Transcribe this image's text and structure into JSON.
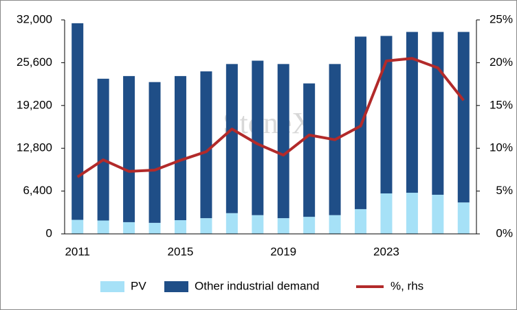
{
  "chart_data": {
    "type": "bar",
    "stacked": true,
    "watermark": "StoneX",
    "categories": [
      "2011",
      null,
      null,
      null,
      "2015",
      null,
      null,
      null,
      "2019",
      null,
      null,
      null,
      "2023",
      null,
      null,
      null
    ],
    "series": [
      {
        "name": "PV",
        "color": "#a6e1f7",
        "values": [
          2100,
          2000,
          1750,
          1650,
          2050,
          2350,
          3100,
          2800,
          2350,
          2550,
          2800,
          3700,
          6050,
          6150,
          5850,
          4700
        ]
      },
      {
        "name": "Other industrial demand",
        "color": "#1f4e87",
        "values": [
          29400,
          21200,
          21850,
          21050,
          21550,
          21950,
          22300,
          23100,
          23050,
          19950,
          22600,
          25800,
          23550,
          24050,
          24350,
          25500
        ]
      },
      {
        "name": "%, rhs",
        "type": "line",
        "axis": "y2",
        "color": "#b22a2a",
        "values": [
          6.65,
          8.65,
          7.3,
          7.45,
          8.6,
          9.6,
          12.25,
          10.5,
          9.2,
          11.55,
          11.0,
          12.6,
          20.2,
          20.5,
          19.4,
          15.6
        ]
      }
    ],
    "ylim": [
      0,
      32000
    ],
    "yticks": [
      0,
      {
        "value": 6400,
        "label": "6,400"
      },
      {
        "value": 12800,
        "label": "12,800"
      },
      {
        "value": 19200,
        "label": "19,200"
      },
      {
        "value": 25600,
        "label": "25,600"
      },
      {
        "value": 32000,
        "label": "32,000"
      }
    ],
    "y2lim": [
      0,
      25
    ],
    "y2ticks": [
      {
        "value": 0,
        "label": "0%"
      },
      {
        "value": 5,
        "label": "5%"
      },
      {
        "value": 10,
        "label": "10%"
      },
      {
        "value": 15,
        "label": "15%"
      },
      {
        "value": 20,
        "label": "20%"
      },
      {
        "value": 25,
        "label": "25%"
      }
    ],
    "legend": "bottom"
  }
}
